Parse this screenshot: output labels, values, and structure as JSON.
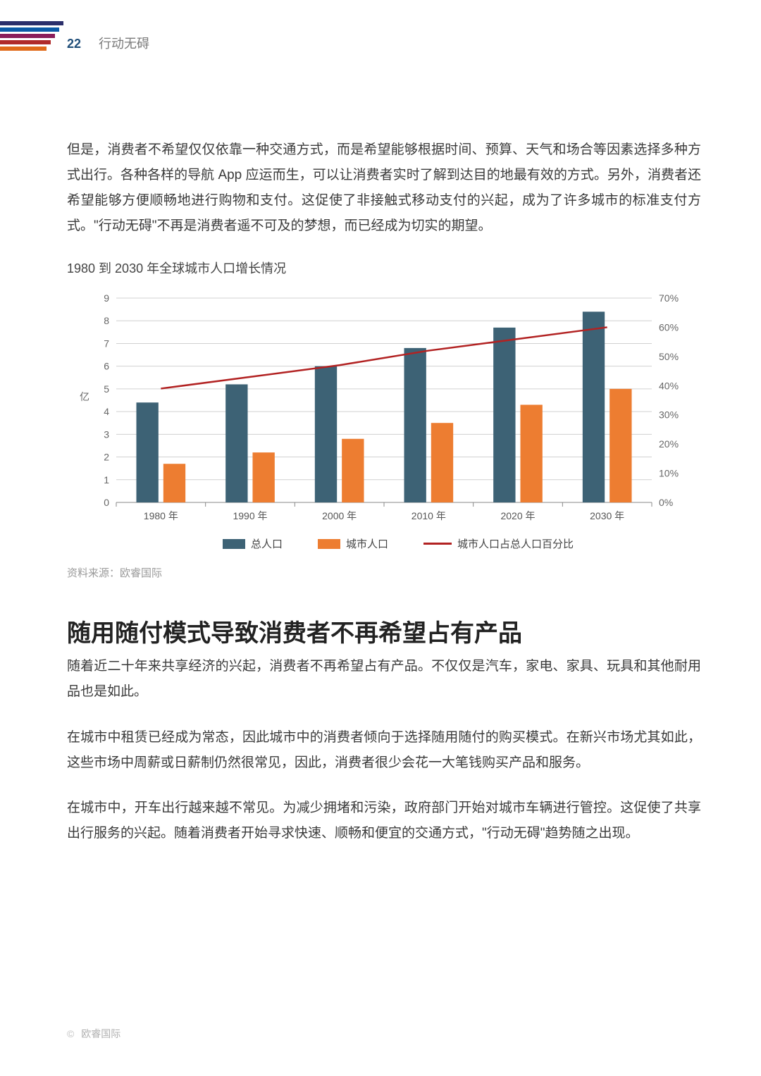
{
  "header": {
    "page_number": "22",
    "section": "行动无碍",
    "stripe_colors": [
      "#2b2f6b",
      "#0b5aa6",
      "#8a1d5a",
      "#b02a2a",
      "#e06a1a"
    ]
  },
  "paragraphs": {
    "p1": "但是，消费者不希望仅仅依靠一种交通方式，而是希望能够根据时间、预算、天气和场合等因素选择多种方式出行。各种各样的导航 App 应运而生，可以让消费者实时了解到达目的地最有效的方式。另外，消费者还希望能够方便顺畅地进行购物和支付。这促使了非接触式移动支付的兴起，成为了许多城市的标准支付方式。\"行动无碍\"不再是消费者遥不可及的梦想，而已经成为切实的期望。"
  },
  "chart": {
    "title": "1980 到 2030 年全球城市人口增长情况",
    "type": "bar+line",
    "categories": [
      "1980 年",
      "1990 年",
      "2000 年",
      "2010 年",
      "2020 年",
      "2030 年"
    ],
    "series1": {
      "name": "总人口",
      "color": "#3d6275",
      "values": [
        4.4,
        5.2,
        6.0,
        6.8,
        7.7,
        8.4
      ]
    },
    "series2": {
      "name": "城市人口",
      "color": "#ed7d31",
      "values": [
        1.7,
        2.2,
        2.8,
        3.5,
        4.3,
        5.0
      ]
    },
    "line": {
      "name": "城市人口占总人口百分比",
      "color": "#b22222",
      "values": [
        39,
        43,
        47,
        52,
        56,
        60
      ]
    },
    "y_left": {
      "min": 0,
      "max": 9,
      "step": 1,
      "label": "亿"
    },
    "y_right": {
      "min": 0,
      "max": 70,
      "step": 10,
      "suffix": "%"
    },
    "grid_color": "#d0d0d0",
    "axis_color": "#888888",
    "bar_group_width": 0.55,
    "source": "资料来源：欧睿国际"
  },
  "section2": {
    "heading": "随用随付模式导致消费者不再希望占有产品",
    "p1": "随着近二十年来共享经济的兴起，消费者不再希望占有产品。不仅仅是汽车，家电、家具、玩具和其他耐用品也是如此。",
    "p2": "在城市中租赁已经成为常态，因此城市中的消费者倾向于选择随用随付的购买模式。在新兴市场尤其如此，这些市场中周薪或日薪制仍然很常见，因此，消费者很少会花一大笔钱购买产品和服务。",
    "p3": "在城市中，开车出行越来越不常见。为减少拥堵和污染，政府部门开始对城市车辆进行管控。这促使了共享出行服务的兴起。随着消费者开始寻求快速、顺畅和便宜的交通方式，\"行动无碍\"趋势随之出现。"
  },
  "footer": {
    "text": "欧睿国际"
  }
}
